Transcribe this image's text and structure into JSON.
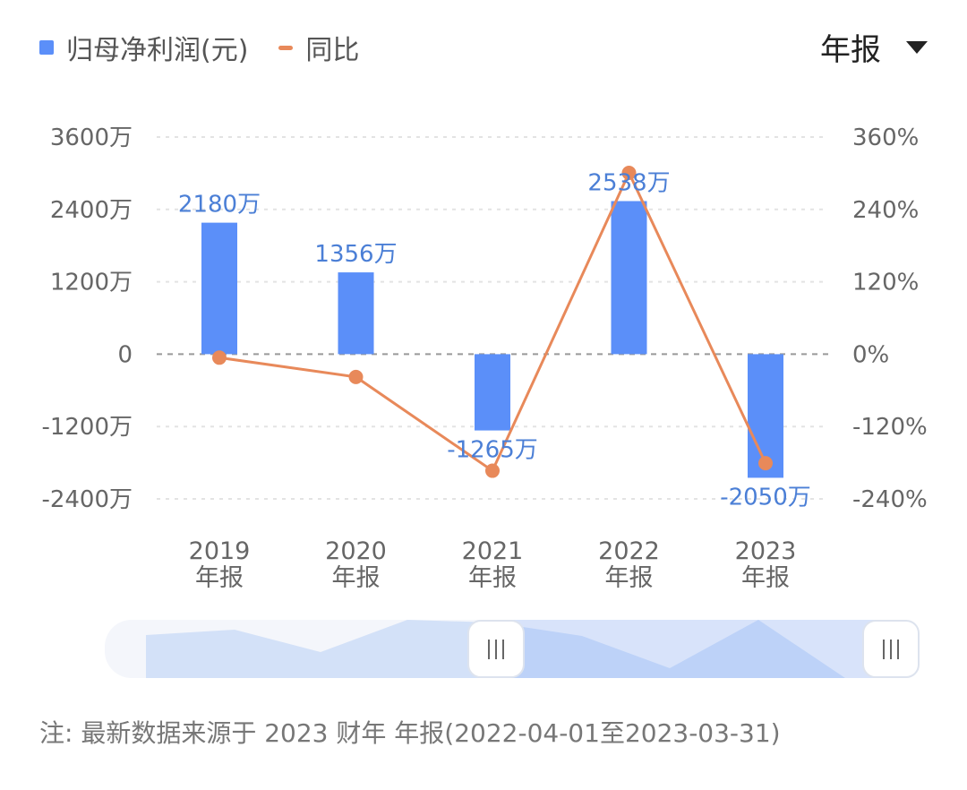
{
  "legend": {
    "bar_label": "归母净利润(元)",
    "line_label": "同比"
  },
  "period_selector": {
    "value": "年报"
  },
  "footnote": "注: 最新数据来源于 2023 财年 年报(2022-04-01至2023-03-31)",
  "colors": {
    "bar": "#5b8ff9",
    "line": "#e8895a",
    "label": "#4b7fd6"
  },
  "chart_data": {
    "type": "bar",
    "categories": [
      "2019",
      "2020",
      "2021",
      "2022",
      "2023"
    ],
    "category_sublabel": "年报",
    "series": [
      {
        "name": "归母净利润(元)",
        "type": "bar",
        "axis": "left",
        "values": [
          21800000,
          13560000,
          -12650000,
          25380000,
          -20500000
        ],
        "data_labels": [
          "2180万",
          "1356万",
          "-1265万",
          "2538万",
          "-2050万"
        ]
      },
      {
        "name": "同比",
        "type": "line",
        "axis": "right",
        "values": [
          -5.8,
          -37.8,
          -193.3,
          300.6,
          -180.8
        ]
      }
    ],
    "left_axis": {
      "ylim": [
        -24000000,
        36000000
      ],
      "ticks": [
        36000000,
        24000000,
        12000000,
        0,
        -12000000,
        -24000000
      ],
      "tick_labels": [
        "3600万",
        "2400万",
        "1200万",
        "0",
        "-1200万",
        "-2400万"
      ]
    },
    "right_axis": {
      "ylim": [
        -240,
        360
      ],
      "ticks": [
        360,
        240,
        120,
        0,
        -120,
        -240
      ],
      "tick_labels": [
        "360%",
        "240%",
        "120%",
        "0%",
        "-120%",
        "-240%"
      ]
    },
    "grid": true,
    "legend_position": "top-left",
    "slider": {
      "range_start_category": "2021",
      "range_end_category": "2023"
    }
  }
}
